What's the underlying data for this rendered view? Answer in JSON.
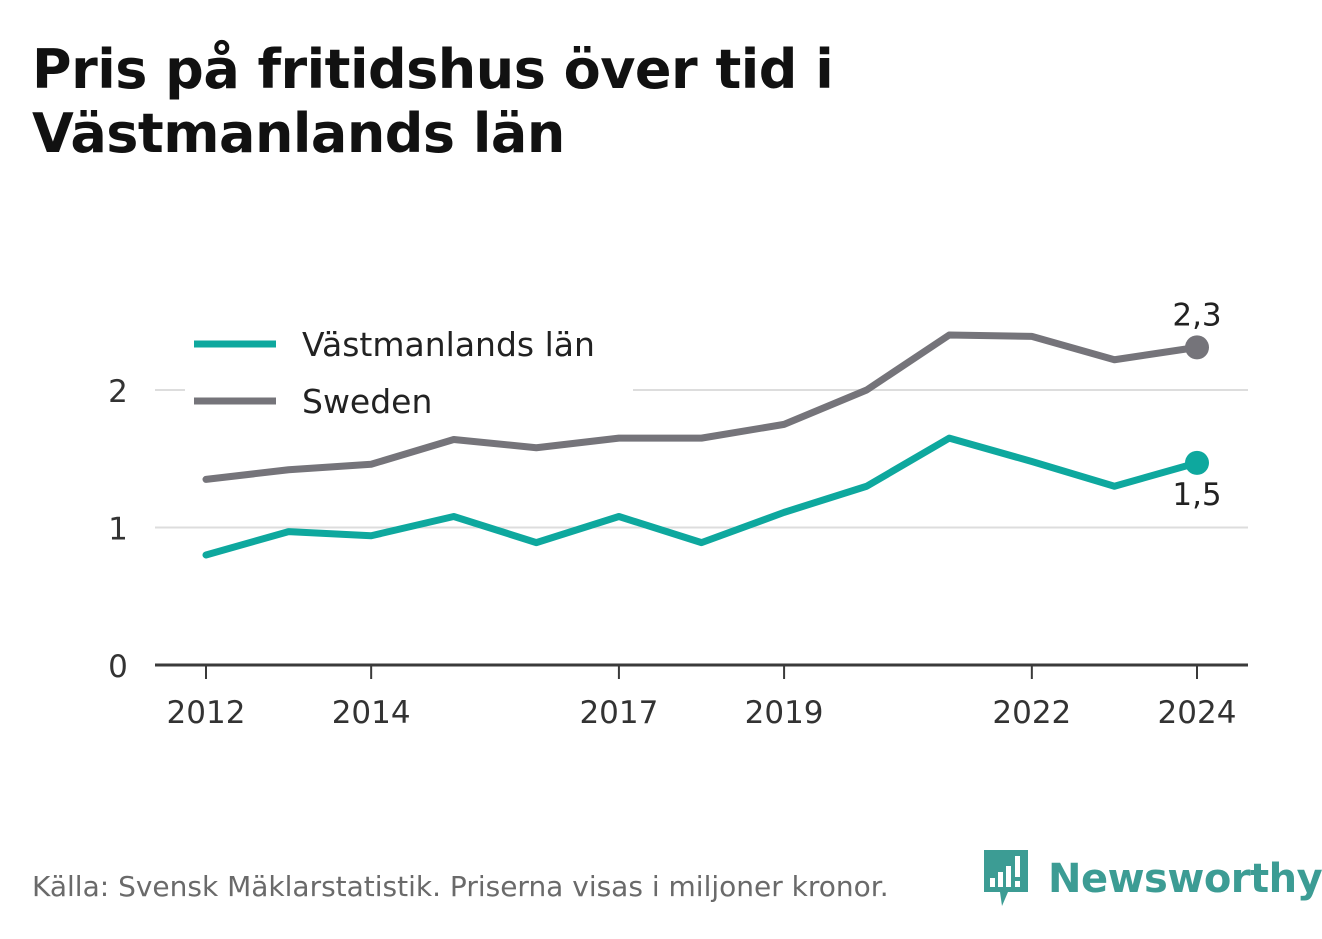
{
  "title": "Pris på fritidshus över tid i Västmanlands län",
  "source": "Källa: Svensk Mäklarstatistik. Priserna visas i miljoner kronor.",
  "brand": {
    "name": "Newsworthy",
    "logo_icon": "bar-chart-speech-bubble-icon"
  },
  "colors": {
    "vastmanland": "#0ea89e",
    "sweden": "#75747a",
    "grid": "#dddddd",
    "axis": "#3a3a3a",
    "text": "#333333",
    "brand": "#3c9c94"
  },
  "chart_data": {
    "type": "line",
    "title": "Pris på fritidshus över tid i Västmanlands län",
    "xlabel": "",
    "ylabel": "",
    "x": [
      2012,
      2013,
      2014,
      2015,
      2016,
      2017,
      2018,
      2019,
      2020,
      2021,
      2022,
      2023,
      2024
    ],
    "x_ticks": [
      2012,
      2014,
      2017,
      2019,
      2022,
      2024
    ],
    "y_ticks": [
      0,
      1,
      2
    ],
    "ylim": [
      0,
      2.6
    ],
    "grid": true,
    "legend_position": "top-left",
    "series": [
      {
        "name": "Västmanlands län",
        "color": "#0ea89e",
        "values": [
          0.8,
          0.97,
          0.94,
          1.08,
          0.89,
          1.08,
          0.89,
          1.11,
          1.3,
          1.65,
          1.48,
          1.3,
          1.47
        ],
        "end_label": "1,5"
      },
      {
        "name": "Sweden",
        "color": "#75747a",
        "values": [
          1.35,
          1.42,
          1.46,
          1.64,
          1.58,
          1.65,
          1.65,
          1.75,
          2.0,
          2.4,
          2.39,
          2.22,
          2.31
        ],
        "end_label": "2,3"
      }
    ]
  }
}
